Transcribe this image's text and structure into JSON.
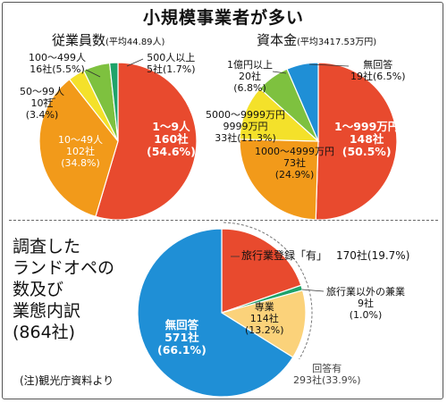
{
  "title": "小規模事業者が多い",
  "chart_data": [
    {
      "type": "pie",
      "title": "従業員数",
      "subtitle": "(平均44.89人)",
      "slices": [
        {
          "label": "1〜9人",
          "count": "160社",
          "pct": "(54.6%)",
          "value": 54.6,
          "color": "#e84a2e"
        },
        {
          "label": "10〜49人",
          "count": "102社",
          "pct": "(34.8%)",
          "value": 34.8,
          "color": "#f29a1a"
        },
        {
          "label": "50〜99人",
          "count": "10社",
          "pct": "(3.4%)",
          "value": 3.4,
          "color": "#f4e12a"
        },
        {
          "label": "100〜499人",
          "count": "16社",
          "pct": "(5.5%)",
          "value": 5.5,
          "color": "#7ec13f"
        },
        {
          "label": "500人以上",
          "count": "5社",
          "pct": "(1.7%)",
          "value": 1.7,
          "color": "#1fa36a"
        }
      ]
    },
    {
      "type": "pie",
      "title": "資本金",
      "subtitle": "(平均3417.53万円)",
      "slices": [
        {
          "label": "1〜999万円",
          "count": "148社",
          "pct": "(50.5%)",
          "value": 50.5,
          "color": "#e84a2e"
        },
        {
          "label": "1000〜4999万円",
          "count": "73社",
          "pct": "(24.9%)",
          "value": 24.9,
          "color": "#f29a1a"
        },
        {
          "label": "5000〜9999万円",
          "count": "33社",
          "pct": "(11.3%)",
          "value": 11.3,
          "color": "#f4e12a"
        },
        {
          "label": "1億円以上",
          "count": "20社",
          "pct": "(6.8%)",
          "value": 6.8,
          "color": "#7ec13f"
        },
        {
          "label": "無回答",
          "count": "19社",
          "pct": "(6.5%)",
          "value": 6.5,
          "color": "#1f8fd6"
        }
      ]
    },
    {
      "type": "pie",
      "title": "調査したランドオペの数及び業態内訳",
      "subtitle": "(864社)",
      "slices": [
        {
          "label": "旅行業登録「有」",
          "count": "170社",
          "pct": "(19.7%)",
          "value": 19.7,
          "color": "#e84a2e"
        },
        {
          "label": "旅行業以外の兼業",
          "count": "9社",
          "pct": "(1.0%)",
          "value": 1.0,
          "color": "#1fa36a"
        },
        {
          "label": "専業",
          "count": "114社",
          "pct": "(13.2%)",
          "value": 13.2,
          "color": "#fbd27a"
        },
        {
          "label": "無回答",
          "count": "571社",
          "pct": "(66.1%)",
          "value": 66.1,
          "color": "#1f8fd6"
        }
      ],
      "group_label": "回答有",
      "group_value": "293社(33.9%)"
    }
  ],
  "note": "(注)観光庁資料より"
}
